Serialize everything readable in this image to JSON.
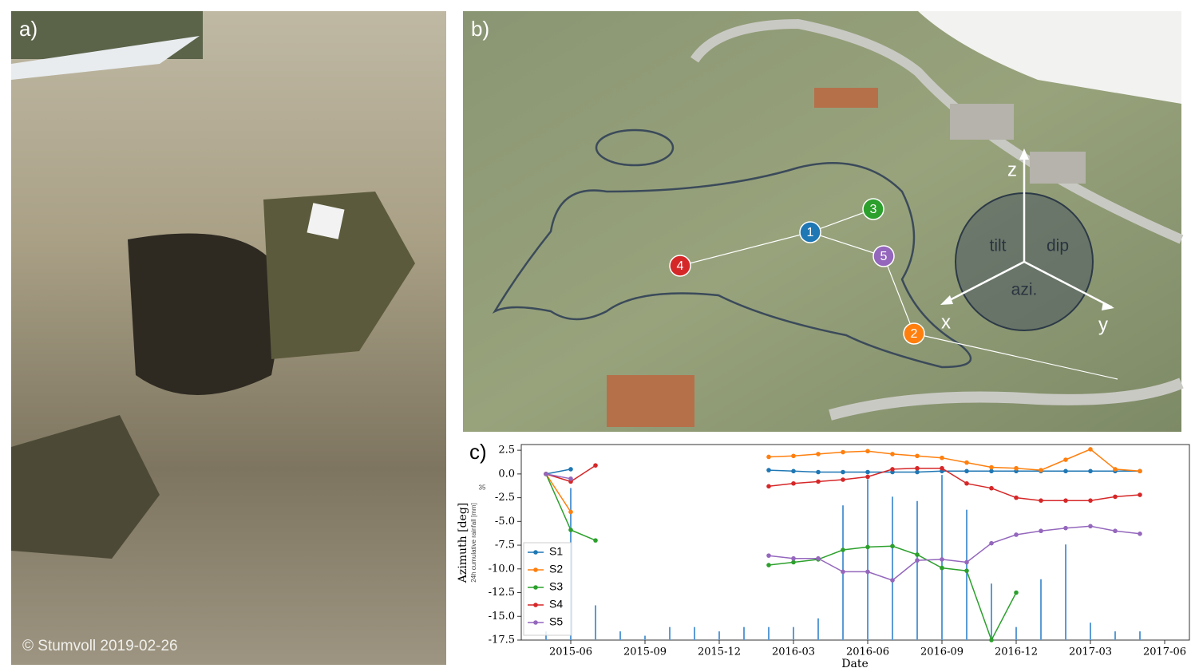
{
  "panels": {
    "a": {
      "label": "a)",
      "credit": "© Stumvoll 2019-02-26"
    },
    "b": {
      "label": "b)",
      "markers": [
        "1",
        "2",
        "3",
        "4",
        "5"
      ],
      "axes": [
        "z",
        "x",
        "y"
      ],
      "angles": [
        "tilt",
        "dip",
        "azi."
      ]
    },
    "c": {
      "label": "c)"
    }
  },
  "chart_data": {
    "type": "line",
    "xlabel": "Date",
    "ylabel": "Azimuth [deg]",
    "y2label": "24h cumulative rainfall [mm]",
    "x": [
      "2015-05",
      "2015-06",
      "2015-07",
      "2015-08",
      "2015-09",
      "2015-10",
      "2015-11",
      "2015-12",
      "2016-01",
      "2016-02",
      "2016-03",
      "2016-04",
      "2016-05",
      "2016-06",
      "2016-07",
      "2016-08",
      "2016-09",
      "2016-10",
      "2016-11",
      "2016-12",
      "2017-01",
      "2017-02",
      "2017-03",
      "2017-04",
      "2017-05"
    ],
    "xlim": [
      "2015-04",
      "2017-07"
    ],
    "xticks": [
      "2015-06",
      "2015-09",
      "2015-12",
      "2016-03",
      "2016-06",
      "2016-09",
      "2016-12",
      "2017-03",
      "2017-06"
    ],
    "ylim": [
      -17.5,
      3.1
    ],
    "yticks": [
      2.5,
      {
        "value": 0,
        "label": "0.0"
      },
      -2.5,
      {
        "value": -5,
        "label": "-5.0"
      },
      -7.5,
      {
        "value": -10,
        "label": "-10.0"
      },
      -12.5,
      {
        "value": -15,
        "label": "-15.0"
      },
      -17.5
    ],
    "y2lim": [
      0,
      45
    ],
    "y2ticks": [
      35
    ],
    "legend": "lower left",
    "series": [
      {
        "name": "S1",
        "color": "#1f77b4",
        "values": [
          0.0,
          0.5,
          null,
          null,
          null,
          null,
          null,
          null,
          null,
          0.4,
          0.3,
          0.2,
          0.2,
          0.2,
          0.2,
          0.2,
          0.3,
          0.3,
          0.3,
          0.3,
          0.3,
          0.3,
          0.3,
          0.3,
          0.3
        ]
      },
      {
        "name": "S2",
        "color": "#ff7f0e",
        "values": [
          0.0,
          -4.0,
          null,
          null,
          null,
          null,
          null,
          null,
          null,
          1.8,
          1.9,
          2.1,
          2.3,
          2.4,
          2.1,
          1.9,
          1.7,
          1.2,
          0.7,
          0.6,
          0.4,
          1.5,
          2.6,
          0.5,
          0.3
        ]
      },
      {
        "name": "S3",
        "color": "#2ca02c",
        "values": [
          0.0,
          -5.9,
          -7.0,
          null,
          null,
          null,
          null,
          null,
          null,
          -9.6,
          -9.3,
          -9.0,
          -8.0,
          -7.7,
          -7.6,
          -8.5,
          -9.9,
          -10.2,
          -17.5,
          -12.5,
          null,
          null,
          null,
          null,
          null
        ]
      },
      {
        "name": "S4",
        "color": "#d62728",
        "values": [
          0.0,
          -0.8,
          0.9,
          null,
          null,
          null,
          null,
          null,
          null,
          -1.3,
          -1.0,
          -0.8,
          -0.6,
          -0.3,
          0.5,
          0.6,
          0.6,
          -1.0,
          -1.5,
          -2.5,
          -2.8,
          -2.8,
          -2.8,
          -2.4,
          -2.2
        ]
      },
      {
        "name": "S5",
        "color": "#9467bd",
        "values": [
          0.0,
          -0.5,
          null,
          null,
          null,
          null,
          null,
          null,
          null,
          -8.6,
          -8.9,
          -8.9,
          -10.3,
          -10.3,
          -11.2,
          -9.1,
          -9.0,
          -9.3,
          -7.3,
          -6.4,
          -6.0,
          -5.7,
          -5.5,
          -6.0,
          -6.3
        ]
      }
    ],
    "rainfall": {
      "color": "#5b9bd5",
      "axis": "y2",
      "values": [
        2,
        35,
        8,
        2,
        1,
        3,
        3,
        2,
        3,
        3,
        3,
        5,
        31,
        37,
        33,
        32,
        38,
        30,
        13,
        3,
        14,
        22,
        4,
        2,
        2
      ]
    }
  }
}
